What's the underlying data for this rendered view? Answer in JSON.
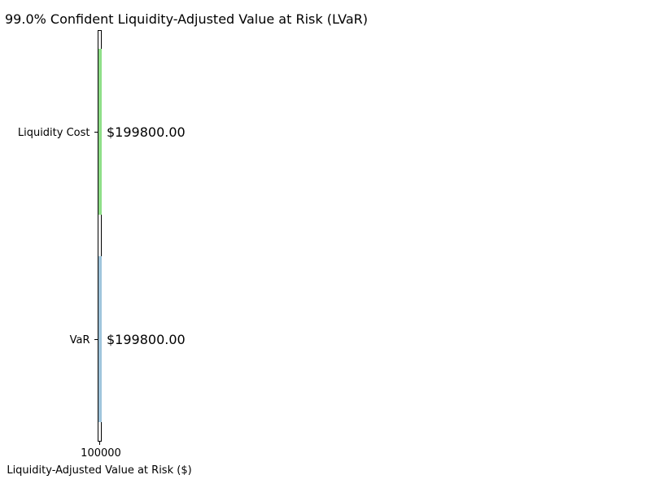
{
  "chart_data": {
    "type": "bar",
    "orientation": "horizontal",
    "title": "99.0% Confident Liquidity-Adjusted Value at Risk (LVaR)",
    "xlabel": "Liquidity-Adjusted Value at Risk ($)",
    "ylabel": "",
    "categories": [
      "VaR",
      "Liquidity Cost"
    ],
    "values": [
      199800.0,
      199800.0
    ],
    "data_labels": [
      "$199800.00",
      "$199800.00"
    ],
    "colors": [
      "#9fc5dc",
      "#8fdf88"
    ],
    "xticks": [
      "100000"
    ],
    "grid": false,
    "legend": "none"
  }
}
